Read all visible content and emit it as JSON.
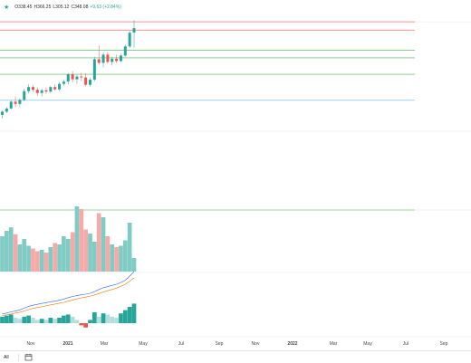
{
  "legend": {
    "open": "O338.45",
    "high": "H366.25",
    "low": "L305.12",
    "close": "C348.08",
    "change": "+9.63 (+2.84%)",
    "up_color": "#26a69a",
    "down_color": "#ef5350"
  },
  "time_axis": {
    "labels": [
      "Nov",
      "2021",
      "Mar",
      "May",
      "Jul",
      "Sep",
      "Nov",
      "2022",
      "Mar",
      "May",
      "Jul",
      "Sep"
    ],
    "bold": [
      "2021",
      "2022"
    ]
  },
  "bottom_bar": {
    "range_label": "All",
    "calendar_icon": "calendar-range-icon"
  },
  "chart_data": {
    "type": "candlestick",
    "x_start": "2020-10-05",
    "interval_days": 7,
    "price_axis_visible": false,
    "candles": [
      {
        "o": 158,
        "h": 168,
        "l": 150,
        "c": 165
      },
      {
        "o": 165,
        "h": 175,
        "l": 162,
        "c": 172
      },
      {
        "o": 172,
        "h": 190,
        "l": 170,
        "c": 187
      },
      {
        "o": 187,
        "h": 198,
        "l": 175,
        "c": 182
      },
      {
        "o": 182,
        "h": 194,
        "l": 176,
        "c": 191
      },
      {
        "o": 191,
        "h": 215,
        "l": 188,
        "c": 210
      },
      {
        "o": 210,
        "h": 225,
        "l": 205,
        "c": 219
      },
      {
        "o": 219,
        "h": 224,
        "l": 208,
        "c": 213
      },
      {
        "o": 213,
        "h": 218,
        "l": 200,
        "c": 206
      },
      {
        "o": 206,
        "h": 216,
        "l": 198,
        "c": 212
      },
      {
        "o": 212,
        "h": 218,
        "l": 204,
        "c": 209
      },
      {
        "o": 209,
        "h": 222,
        "l": 206,
        "c": 219
      },
      {
        "o": 219,
        "h": 225,
        "l": 211,
        "c": 214
      },
      {
        "o": 214,
        "h": 230,
        "l": 210,
        "c": 226
      },
      {
        "o": 226,
        "h": 235,
        "l": 222,
        "c": 231
      },
      {
        "o": 231,
        "h": 250,
        "l": 225,
        "c": 247
      },
      {
        "o": 247,
        "h": 254,
        "l": 230,
        "c": 236
      },
      {
        "o": 236,
        "h": 246,
        "l": 226,
        "c": 242
      },
      {
        "o": 242,
        "h": 250,
        "l": 232,
        "c": 240
      },
      {
        "o": 240,
        "h": 249,
        "l": 220,
        "c": 224
      },
      {
        "o": 224,
        "h": 240,
        "l": 220,
        "c": 235
      },
      {
        "o": 235,
        "h": 285,
        "l": 232,
        "c": 280
      },
      {
        "o": 280,
        "h": 310,
        "l": 268,
        "c": 272
      },
      {
        "o": 272,
        "h": 295,
        "l": 262,
        "c": 290
      },
      {
        "o": 290,
        "h": 296,
        "l": 270,
        "c": 274
      },
      {
        "o": 274,
        "h": 285,
        "l": 266,
        "c": 281
      },
      {
        "o": 281,
        "h": 290,
        "l": 272,
        "c": 276
      },
      {
        "o": 276,
        "h": 292,
        "l": 273,
        "c": 288
      },
      {
        "o": 288,
        "h": 312,
        "l": 285,
        "c": 308
      },
      {
        "o": 308,
        "h": 342,
        "l": 305,
        "c": 338
      },
      {
        "o": 338.45,
        "h": 366.25,
        "l": 305.12,
        "c": 348.08
      }
    ],
    "volumes": [
      52,
      60,
      65,
      55,
      40,
      48,
      38,
      34,
      30,
      32,
      28,
      36,
      42,
      40,
      52,
      48,
      58,
      96,
      92,
      62,
      56,
      44,
      86,
      80,
      52,
      40,
      36,
      38,
      46,
      72,
      20
    ],
    "moving_averages": [
      {
        "color": "#2962ff",
        "values": [
          160,
          163,
          167,
          170,
          174,
          180,
          186,
          190,
          193,
          196,
          199,
          202,
          204,
          207,
          211,
          216,
          220,
          223,
          226,
          228,
          231,
          237,
          244,
          250,
          254,
          258,
          262,
          268,
          276,
          290,
          305
        ]
      },
      {
        "color": "#f57c00",
        "values": [
          155,
          157,
          160,
          163,
          166,
          170,
          175,
          179,
          182,
          185,
          188,
          191,
          194,
          197,
          200,
          204,
          208,
          212,
          215,
          218,
          221,
          225,
          230,
          235,
          240,
          244,
          249,
          255,
          262,
          272,
          284
        ]
      }
    ],
    "histogram": [
      6,
      7,
      8,
      5,
      4,
      6,
      7,
      5,
      3,
      4,
      3,
      5,
      4,
      5,
      7,
      8,
      6,
      3,
      -2,
      -4,
      3,
      10,
      6,
      9,
      8,
      6,
      5,
      9,
      12,
      15,
      18
    ],
    "horizontal_lines": [
      {
        "price": 362,
        "color": "#ef5350"
      },
      {
        "price": 344,
        "color": "#ef5350"
      },
      {
        "price": 300,
        "color": "#4caf50"
      },
      {
        "price": 283,
        "color": "#4caf50"
      },
      {
        "price": 247,
        "color": "#4caf50"
      },
      {
        "price": 190,
        "color": "#64b5f6"
      }
    ]
  }
}
